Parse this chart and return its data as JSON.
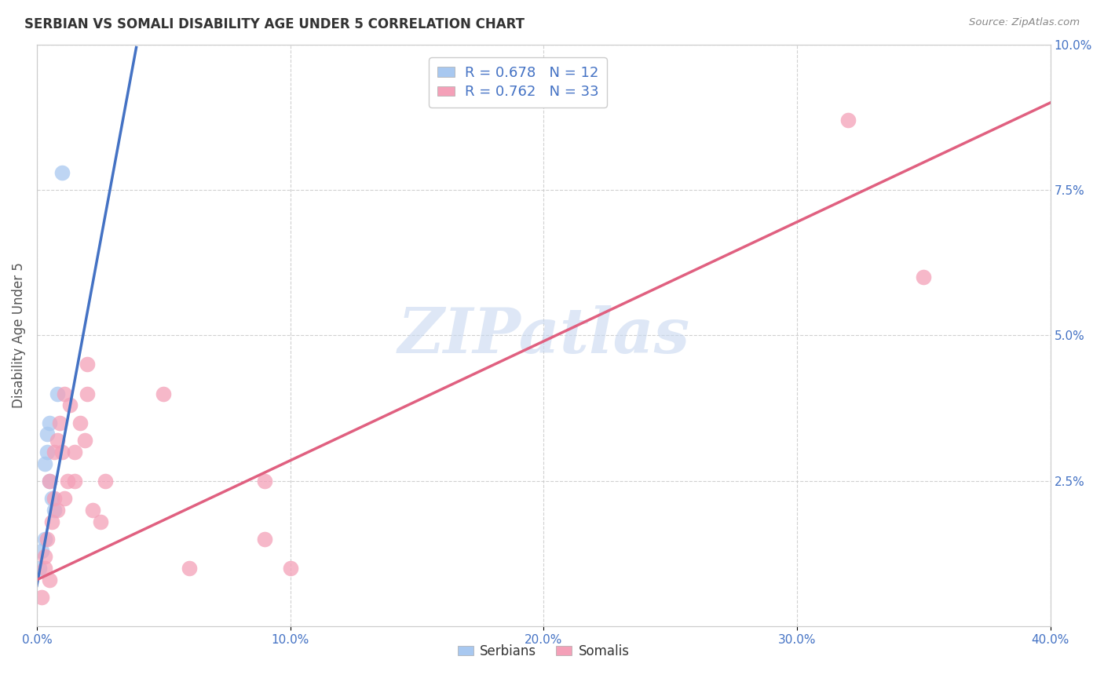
{
  "title": "SERBIAN VS SOMALI DISABILITY AGE UNDER 5 CORRELATION CHART",
  "source": "Source: ZipAtlas.com",
  "ylabel": "Disability Age Under 5",
  "xlim": [
    0.0,
    0.4
  ],
  "ylim": [
    0.0,
    0.1
  ],
  "xticks": [
    0.0,
    0.1,
    0.2,
    0.3,
    0.4
  ],
  "xticklabels": [
    "0.0%",
    "10.0%",
    "20.0%",
    "30.0%",
    "40.0%"
  ],
  "yticks_right": [
    0.025,
    0.05,
    0.075,
    0.1
  ],
  "yticklabels_right": [
    "2.5%",
    "5.0%",
    "7.5%",
    "10.0%"
  ],
  "serbians_x": [
    0.001,
    0.002,
    0.003,
    0.003,
    0.004,
    0.004,
    0.005,
    0.005,
    0.006,
    0.007,
    0.008,
    0.01
  ],
  "serbians_y": [
    0.01,
    0.013,
    0.015,
    0.028,
    0.03,
    0.033,
    0.025,
    0.035,
    0.022,
    0.02,
    0.04,
    0.078
  ],
  "somalis_x": [
    0.002,
    0.003,
    0.003,
    0.004,
    0.005,
    0.005,
    0.006,
    0.007,
    0.007,
    0.008,
    0.008,
    0.009,
    0.01,
    0.011,
    0.011,
    0.012,
    0.013,
    0.015,
    0.015,
    0.017,
    0.019,
    0.02,
    0.02,
    0.022,
    0.025,
    0.027,
    0.05,
    0.06,
    0.09,
    0.09,
    0.1,
    0.32,
    0.35
  ],
  "somalis_y": [
    0.005,
    0.01,
    0.012,
    0.015,
    0.008,
    0.025,
    0.018,
    0.022,
    0.03,
    0.02,
    0.032,
    0.035,
    0.03,
    0.04,
    0.022,
    0.025,
    0.038,
    0.025,
    0.03,
    0.035,
    0.032,
    0.045,
    0.04,
    0.02,
    0.018,
    0.025,
    0.04,
    0.01,
    0.015,
    0.025,
    0.01,
    0.087,
    0.06
  ],
  "serbian_R": 0.678,
  "serbian_N": 12,
  "somali_R": 0.762,
  "somali_N": 33,
  "serbian_color": "#a8c8f0",
  "somali_color": "#f4a0b8",
  "serbian_line_color": "#4472c4",
  "somali_line_color": "#e06080",
  "background_color": "#ffffff",
  "legend_color": "#4472c4",
  "watermark_text": "ZIPatlas",
  "watermark_color": "#c8d8f0",
  "serbian_trendline_slope": 2.357,
  "serbian_trendline_intercept": 0.007,
  "somali_trendline_slope": 0.205,
  "somali_trendline_intercept": 0.008
}
